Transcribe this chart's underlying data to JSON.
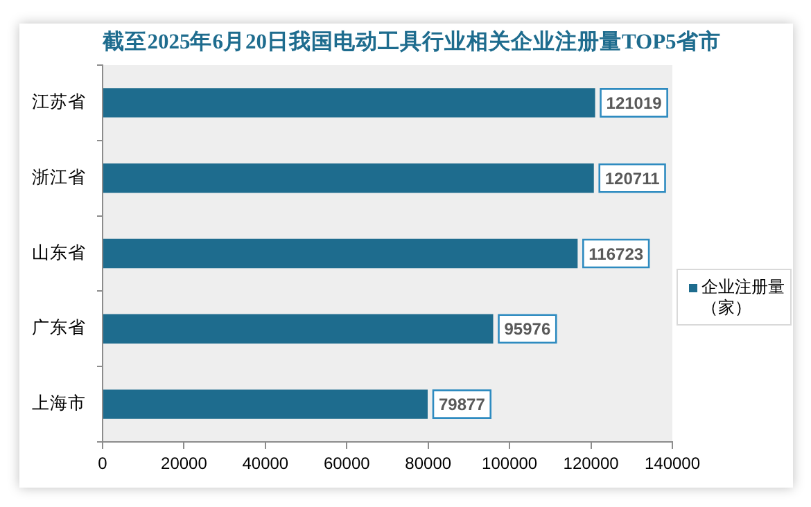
{
  "chart_data": {
    "type": "bar",
    "orientation": "horizontal",
    "title": "截至2025年6月20日我国电动工具行业相关企业注册量TOP5省市",
    "categories": [
      "江苏省",
      "浙江省",
      "山东省",
      "广东省",
      "上海市"
    ],
    "series": [
      {
        "name": "企业注册量（家）",
        "color": "#1e6c8e",
        "values": [
          121019,
          120711,
          116723,
          95976,
          79877
        ]
      }
    ],
    "xlim": [
      0,
      140000
    ],
    "xticks": [
      0,
      20000,
      40000,
      60000,
      80000,
      100000,
      120000,
      140000
    ],
    "data_labels": true,
    "legend": "right"
  }
}
